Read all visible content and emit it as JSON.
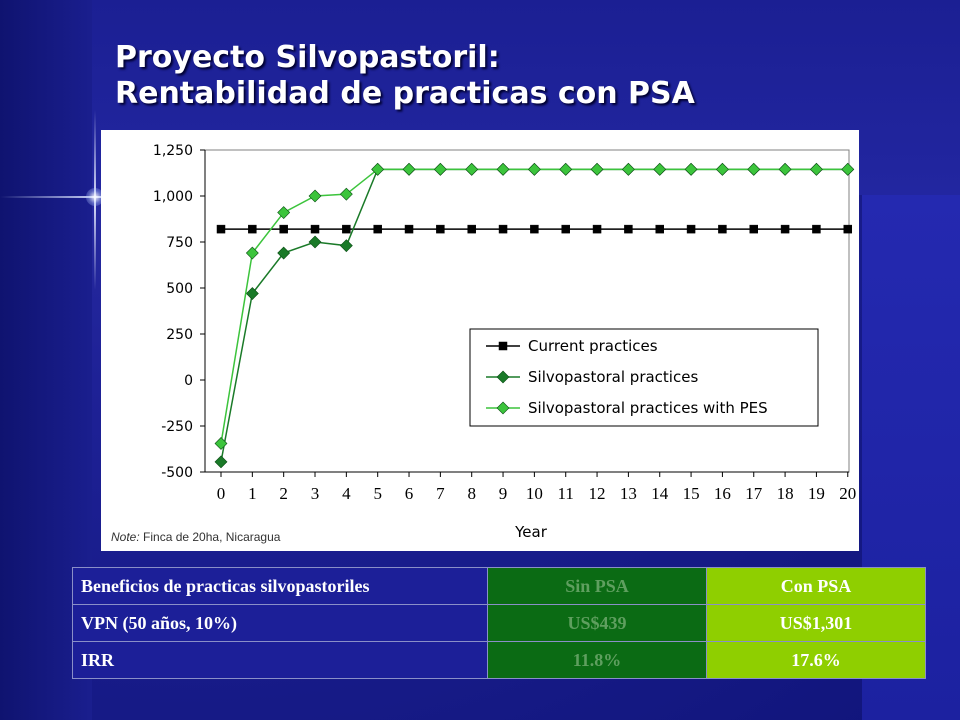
{
  "slide": {
    "title_line1": "Proyecto Silvopastoril:",
    "title_line2": "Rentabilidad de practicas con PSA"
  },
  "note": {
    "label": "Note:",
    "text": " Finca de 20ha, Nicaragua"
  },
  "chart_data": {
    "type": "line",
    "xlabel": "Year",
    "ylabel": "",
    "x": [
      0,
      1,
      2,
      3,
      4,
      5,
      6,
      7,
      8,
      9,
      10,
      11,
      12,
      13,
      14,
      15,
      16,
      17,
      18,
      19,
      20
    ],
    "ylim": [
      -500,
      1250
    ],
    "yticks": [
      -500,
      -250,
      0,
      250,
      500,
      750,
      1000,
      1250
    ],
    "ytick_labels": [
      "-500",
      "-250",
      "0",
      "250",
      "500",
      "750",
      "1,000",
      "1,250"
    ],
    "grid": false,
    "legend_position": "right-middle",
    "series": [
      {
        "name": "Current practices",
        "color": "#000000",
        "marker": "square",
        "values": [
          820,
          820,
          820,
          820,
          820,
          820,
          820,
          820,
          820,
          820,
          820,
          820,
          820,
          820,
          820,
          820,
          820,
          820,
          820,
          820,
          820
        ]
      },
      {
        "name": "Silvopastoral practices",
        "color": "#1a7a28",
        "marker": "diamond",
        "values": [
          -445,
          470,
          690,
          750,
          730,
          1145,
          1145,
          1145,
          1145,
          1145,
          1145,
          1145,
          1145,
          1145,
          1145,
          1145,
          1145,
          1145,
          1145,
          1145,
          1145
        ]
      },
      {
        "name": "Silvopastoral practices with PES",
        "color": "#3cc43c",
        "marker": "diamond",
        "values": [
          -345,
          690,
          910,
          1000,
          1010,
          1145,
          1145,
          1145,
          1145,
          1145,
          1145,
          1145,
          1145,
          1145,
          1145,
          1145,
          1145,
          1145,
          1145,
          1145,
          1145
        ]
      }
    ]
  },
  "table": {
    "header": [
      "Beneficios de practicas silvopastoriles",
      "Sin PSA",
      "Con PSA"
    ],
    "rows": [
      [
        "VPN (50 años, 10%)",
        "US$439",
        "US$1,301"
      ],
      [
        "IRR",
        "11.8%",
        "17.6%"
      ]
    ]
  }
}
